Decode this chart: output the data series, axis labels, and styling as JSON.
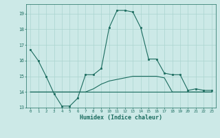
{
  "xlabel": "Humidex (Indice chaleur)",
  "xlim": [
    -0.5,
    23.5
  ],
  "ylim": [
    13,
    19.6
  ],
  "yticks": [
    13,
    14,
    15,
    16,
    17,
    18,
    19
  ],
  "xticks": [
    0,
    1,
    2,
    3,
    4,
    5,
    6,
    7,
    8,
    9,
    10,
    11,
    12,
    13,
    14,
    15,
    16,
    17,
    18,
    19,
    20,
    21,
    22,
    23
  ],
  "bg_color": "#cce9e7",
  "line_color": "#1a6b5e",
  "grid_color": "#aad4d0",
  "series1": {
    "x": [
      0,
      1,
      2,
      3,
      4,
      5,
      6,
      7,
      8,
      9,
      10,
      11,
      12,
      13,
      14,
      15,
      16,
      17,
      18,
      19,
      20,
      21,
      22,
      23
    ],
    "y": [
      16.7,
      16.0,
      15.0,
      13.9,
      13.1,
      13.1,
      13.6,
      15.1,
      15.1,
      15.5,
      18.1,
      19.2,
      19.2,
      19.1,
      18.1,
      16.1,
      16.1,
      15.2,
      15.1,
      15.1,
      14.1,
      14.2,
      14.1,
      14.1
    ]
  },
  "series2": {
    "x": [
      0,
      1,
      2,
      3,
      4,
      5,
      6,
      7,
      8,
      9,
      10,
      11,
      12,
      13,
      14,
      15,
      16,
      17,
      18,
      19,
      20,
      21,
      22,
      23
    ],
    "y": [
      14.0,
      14.0,
      14.0,
      14.0,
      14.0,
      14.0,
      14.0,
      14.0,
      14.2,
      14.5,
      14.7,
      14.8,
      14.9,
      15.0,
      15.0,
      15.0,
      15.0,
      14.9,
      14.0,
      14.0,
      14.0,
      14.0,
      14.0,
      14.0
    ]
  },
  "series3": {
    "x": [
      0,
      1,
      2,
      3,
      4,
      5,
      6,
      7,
      8,
      9,
      10,
      11,
      12,
      13,
      14,
      15,
      16,
      17,
      18,
      19,
      20,
      21,
      22,
      23
    ],
    "y": [
      14.0,
      14.0,
      14.0,
      14.0,
      14.0,
      14.0,
      14.0,
      14.0,
      14.0,
      14.0,
      14.0,
      14.0,
      14.0,
      14.0,
      14.0,
      14.0,
      14.0,
      14.0,
      14.0,
      14.0,
      14.0,
      14.0,
      14.0,
      14.0
    ]
  }
}
